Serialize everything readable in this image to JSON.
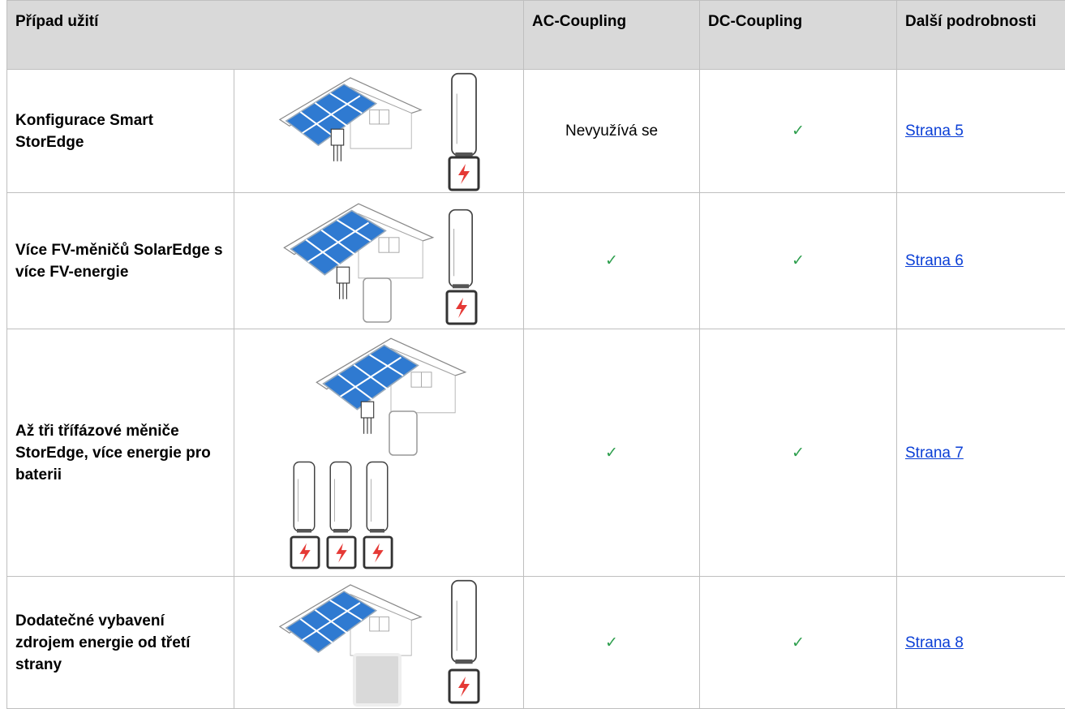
{
  "table": {
    "header": [
      "Případ užití",
      "AC-Coupling",
      "DC-Coupling",
      "Další podrobnosti"
    ],
    "rows": [
      [
        "Konfigurace Smart StorEdge",
        "Nevyužívá se",
        "✓",
        "Strana 5"
      ],
      [
        "Více FV-měničů SolarEdge s více FV-energie",
        "✓",
        "✓",
        "Strana 6"
      ],
      [
        "Až tři třífázové měniče StorEdge, více energie pro baterii",
        "✓",
        "✓",
        "Strana 7"
      ],
      [
        "Dodatečné vybavení zdrojem energie od třetí strany",
        "✓",
        "✓",
        "Strana 8"
      ]
    ]
  }
}
